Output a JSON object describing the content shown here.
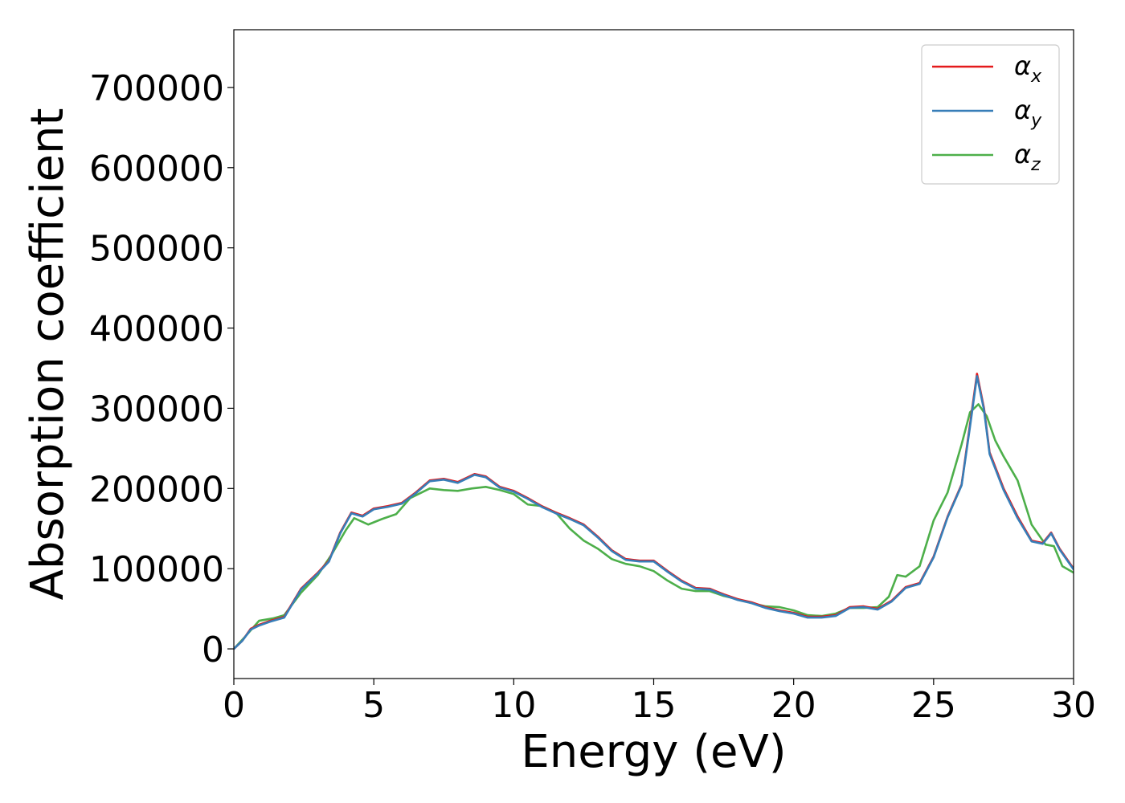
{
  "chart_data": {
    "type": "line",
    "title": "",
    "xlabel": "Energy (eV)",
    "ylabel": "Absorption coefficient",
    "xlim": [
      0,
      30
    ],
    "ylim": [
      -37000,
      772000
    ],
    "xticks": [
      0,
      5,
      10,
      15,
      20,
      25,
      30
    ],
    "yticks": [
      0,
      100000,
      200000,
      300000,
      400000,
      500000,
      600000,
      700000
    ],
    "grid": false,
    "legend_position": "top-right",
    "series": [
      {
        "name": "α",
        "subscript": "x",
        "color": "#e41a1c",
        "x": [
          0,
          0.3,
          0.6,
          0.9,
          1.3,
          1.8,
          2.4,
          3.0,
          3.4,
          3.8,
          4.2,
          4.6,
          5.0,
          5.5,
          6.0,
          6.5,
          7.0,
          7.5,
          8.0,
          8.6,
          9.0,
          9.5,
          10.0,
          10.5,
          11.0,
          11.5,
          12.0,
          12.5,
          13.0,
          13.5,
          14.0,
          14.5,
          15.0,
          15.5,
          16.0,
          16.5,
          17.0,
          17.5,
          18.0,
          18.5,
          19.0,
          19.5,
          20.0,
          20.5,
          21.0,
          21.5,
          22.0,
          22.5,
          23.0,
          23.5,
          24.0,
          24.5,
          25.0,
          25.5,
          26.0,
          26.3,
          26.55,
          26.8,
          27.0,
          27.5,
          28.0,
          28.5,
          28.9,
          29.2,
          29.5,
          30.0
        ],
        "y": [
          0,
          10000,
          25000,
          30000,
          35000,
          40000,
          75000,
          95000,
          110000,
          145000,
          170000,
          166000,
          175000,
          178000,
          182000,
          195000,
          210000,
          212000,
          208000,
          218000,
          215000,
          202000,
          197000,
          188000,
          178000,
          170000,
          163000,
          155000,
          140000,
          123000,
          112000,
          110000,
          110000,
          97000,
          85000,
          76000,
          75000,
          68000,
          62000,
          58000,
          52000,
          48000,
          45000,
          40000,
          40000,
          42000,
          52000,
          53000,
          50000,
          60000,
          77000,
          82000,
          115000,
          165000,
          205000,
          280000,
          343000,
          300000,
          245000,
          200000,
          165000,
          135000,
          132000,
          145000,
          125000,
          100000
        ]
      },
      {
        "name": "α",
        "subscript": "y",
        "color": "#377eb8",
        "x": [
          0,
          0.3,
          0.6,
          0.9,
          1.3,
          1.8,
          2.4,
          3.0,
          3.4,
          3.8,
          4.2,
          4.6,
          5.0,
          5.5,
          6.0,
          6.5,
          7.0,
          7.5,
          8.0,
          8.6,
          9.0,
          9.5,
          10.0,
          10.5,
          11.0,
          11.5,
          12.0,
          12.5,
          13.0,
          13.5,
          14.0,
          14.5,
          15.0,
          15.5,
          16.0,
          16.5,
          17.0,
          17.5,
          18.0,
          18.5,
          19.0,
          19.5,
          20.0,
          20.5,
          21.0,
          21.5,
          22.0,
          22.5,
          23.0,
          23.5,
          24.0,
          24.5,
          25.0,
          25.5,
          26.0,
          26.3,
          26.55,
          26.8,
          27.0,
          27.5,
          28.0,
          28.5,
          28.9,
          29.2,
          29.5,
          30.0
        ],
        "y": [
          0,
          10000,
          24000,
          29000,
          34000,
          39000,
          74000,
          94000,
          109000,
          144000,
          169000,
          165000,
          174000,
          177000,
          181000,
          194000,
          209000,
          211000,
          207000,
          217000,
          214000,
          201000,
          196000,
          187000,
          177000,
          169000,
          162000,
          154000,
          139000,
          122000,
          111000,
          109000,
          109000,
          96000,
          84000,
          75000,
          74000,
          67000,
          61000,
          57000,
          51000,
          47000,
          44000,
          39000,
          39000,
          41000,
          51000,
          52000,
          49000,
          59000,
          76000,
          81000,
          114000,
          164000,
          204000,
          277000,
          340000,
          298000,
          243000,
          198000,
          163000,
          134000,
          131000,
          144000,
          124000,
          99000
        ]
      },
      {
        "name": "α",
        "subscript": "z",
        "color": "#4daf4a",
        "x": [
          0,
          0.4,
          0.9,
          1.4,
          1.8,
          2.4,
          3.0,
          3.5,
          4.0,
          4.3,
          4.8,
          5.3,
          5.8,
          6.3,
          7.0,
          7.5,
          8.0,
          8.5,
          9.0,
          9.5,
          10.0,
          10.5,
          11.0,
          11.5,
          12.0,
          12.5,
          13.0,
          13.5,
          14.0,
          14.5,
          15.0,
          15.5,
          16.0,
          16.5,
          17.0,
          17.5,
          18.0,
          18.5,
          19.0,
          19.5,
          20.0,
          20.5,
          21.0,
          21.5,
          22.0,
          22.5,
          23.0,
          23.4,
          23.7,
          24.0,
          24.5,
          25.0,
          25.5,
          26.0,
          26.3,
          26.6,
          26.9,
          27.2,
          27.5,
          28.0,
          28.5,
          29.0,
          29.3,
          29.6,
          30.0
        ],
        "y": [
          0,
          15000,
          35000,
          38000,
          42000,
          70000,
          92000,
          118000,
          148000,
          163000,
          155000,
          162000,
          168000,
          188000,
          200000,
          198000,
          197000,
          200000,
          202000,
          198000,
          193000,
          180000,
          178000,
          170000,
          150000,
          135000,
          125000,
          112000,
          106000,
          103000,
          97000,
          85000,
          75000,
          72000,
          72000,
          66000,
          62000,
          57000,
          53000,
          52000,
          48000,
          42000,
          41000,
          44000,
          51000,
          51000,
          52000,
          65000,
          92000,
          90000,
          103000,
          160000,
          195000,
          255000,
          295000,
          305000,
          290000,
          260000,
          240000,
          210000,
          155000,
          130000,
          128000,
          103000,
          95000
        ]
      }
    ]
  }
}
